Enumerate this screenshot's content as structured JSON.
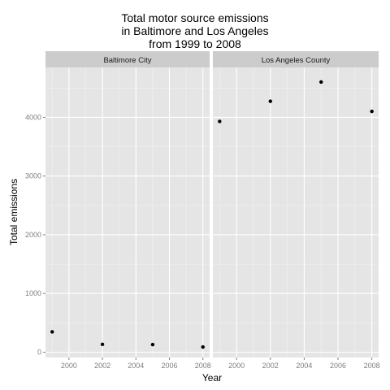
{
  "chart_data": {
    "type": "scatter",
    "title_lines": [
      "Total motor source emissions",
      "in Baltimore and Los Angeles",
      "from 1999 to 2008"
    ],
    "xlabel": "Year",
    "ylabel": "Total emissions",
    "xlim": [
      1998.6,
      2008.4
    ],
    "ylim": [
      -90,
      4850
    ],
    "x_ticks": [
      2000,
      2002,
      2004,
      2006,
      2008
    ],
    "y_ticks": [
      0,
      1000,
      2000,
      3000,
      4000
    ],
    "grid": true,
    "colors": {
      "panel_background": "#e5e5e5",
      "strip_background": "#cccccc",
      "grid_major": "#ffffff",
      "grid_minor": "#f2f2f2",
      "point": "#000000",
      "tick_label": "#7f7f7f"
    },
    "facets": [
      {
        "label": "Baltimore City",
        "x": [
          1999,
          2002,
          2005,
          2008
        ],
        "y": [
          346.8,
          134.3,
          130.4,
          88.3
        ]
      },
      {
        "label": "Los Angeles County",
        "x": [
          1999,
          2002,
          2005,
          2008
        ],
        "y": [
          3931.1,
          4274.0,
          4601.4,
          4101.3
        ]
      }
    ]
  }
}
